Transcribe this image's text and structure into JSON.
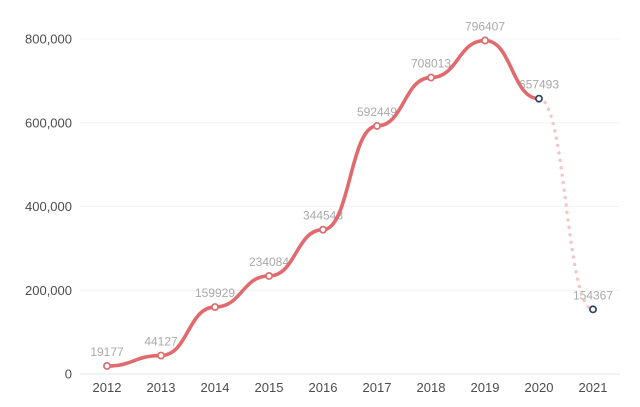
{
  "chart_data": {
    "type": "line",
    "title": "",
    "xlabel": "",
    "ylabel": "",
    "categories": [
      "2012",
      "2013",
      "2014",
      "2015",
      "2016",
      "2017",
      "2018",
      "2019",
      "2020",
      "2021"
    ],
    "values": [
      19177,
      44127,
      159929,
      234084,
      344548,
      592449,
      708013,
      796407,
      657493,
      154367
    ],
    "point_labels": [
      "19177",
      "44127",
      "159929",
      "234084",
      "344548",
      "592449",
      "708013",
      "796407",
      "657493",
      "154367"
    ],
    "solid_segment_last_index": 8,
    "dashed_segment_indices": [
      8,
      9
    ],
    "ylim": [
      0,
      800000
    ],
    "yticks": [
      {
        "value": 0,
        "label": "0"
      },
      {
        "value": 200000,
        "label": "200,000"
      },
      {
        "value": 400000,
        "label": "400,000"
      },
      {
        "value": 600000,
        "label": "600,000"
      },
      {
        "value": 800000,
        "label": "800,000"
      }
    ],
    "grid": true,
    "legend": "none",
    "styles": {
      "line_color": "#e06a6d",
      "dashed_line_color": "#f5c6c8",
      "marker_fill": "#ffffff",
      "marker_stroke_main": "#e06a6d",
      "marker_stroke_alt": "#33425e",
      "alt_marker_indices": [
        8,
        9
      ],
      "point_label_color": "#a9a9a9",
      "axis_text_color": "#4d4d4d",
      "gridline_color": "#f4f4f4",
      "axis_line_color": "#e4e4e4",
      "background": "#ffffff"
    }
  }
}
